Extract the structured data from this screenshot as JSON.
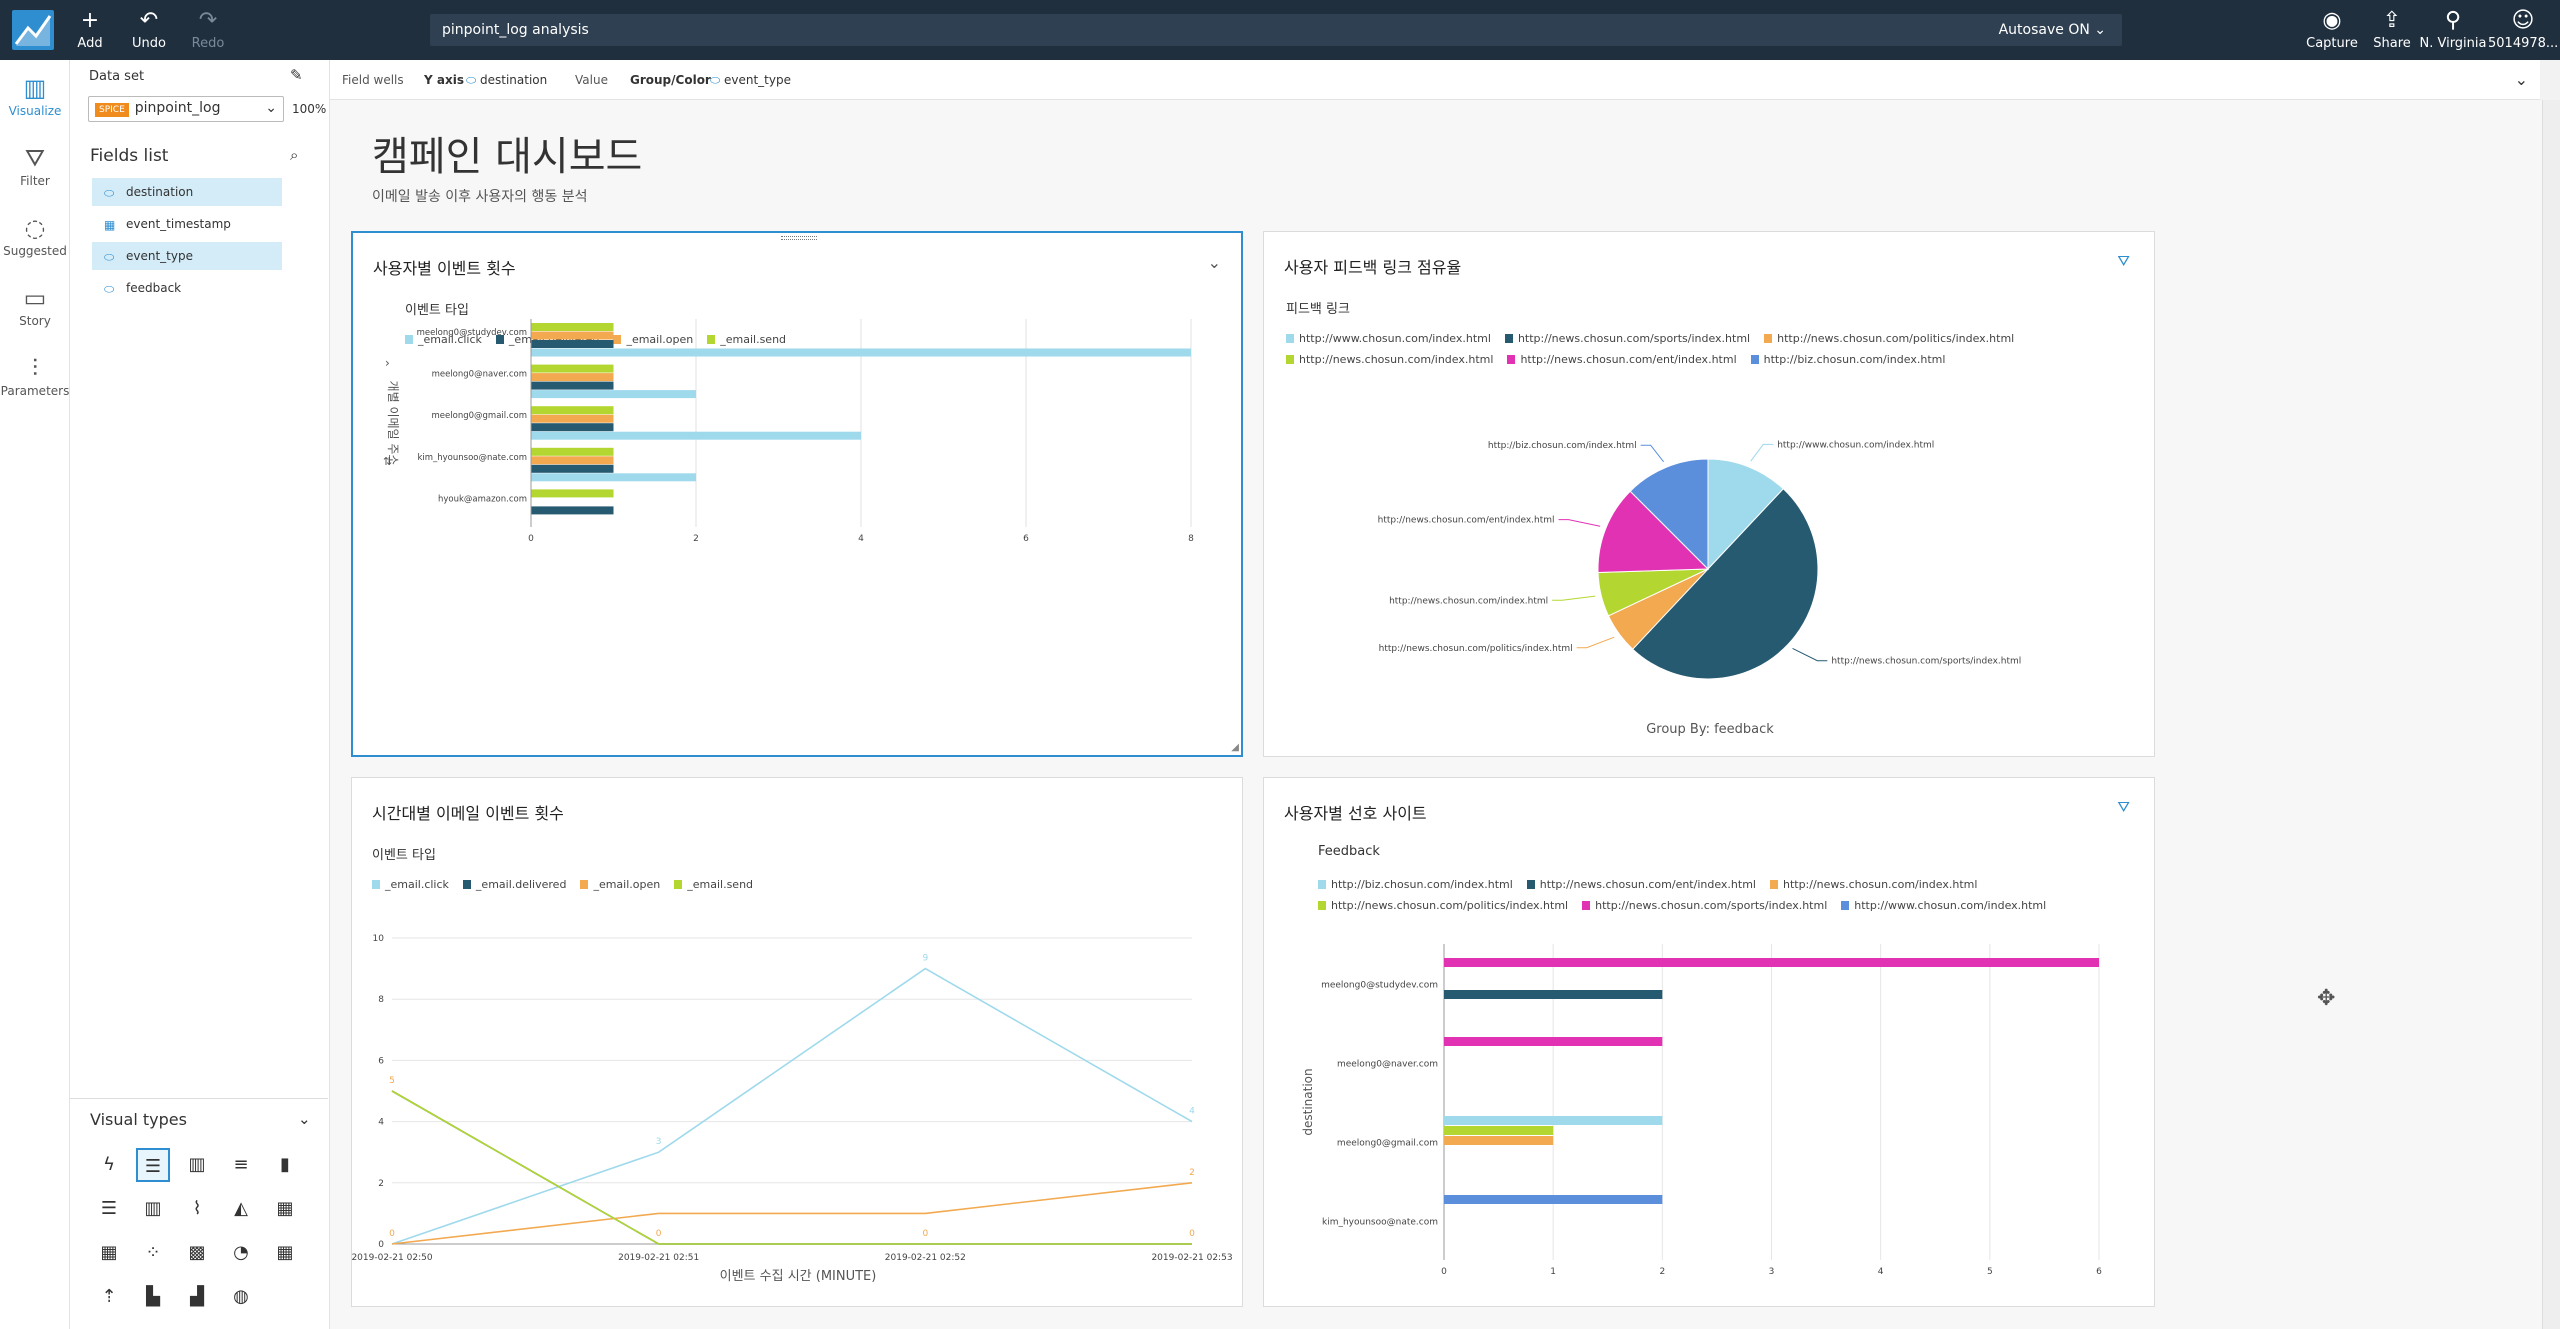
{
  "topbar": {
    "add_label": "Add",
    "undo_label": "Undo",
    "redo_label": "Redo",
    "analysis_title": "pinpoint_log analysis",
    "autosave": "Autosave ON",
    "capture_label": "Capture",
    "share_label": "Share",
    "region_label": "N. Virginia",
    "account_label": "5014978..."
  },
  "nav": {
    "visualize": "Visualize",
    "filter": "Filter",
    "suggested": "Suggested",
    "story": "Story",
    "parameters": "Parameters"
  },
  "sidepanel": {
    "dataset_label": "Data set",
    "spice_badge": "SPICE",
    "dataset_name": "pinpoint_log",
    "dataset_pct": "100%",
    "fields_title": "Fields list",
    "fields": [
      {
        "name": "destination",
        "selected": true,
        "icon": "string-field-icon"
      },
      {
        "name": "event_timestamp",
        "selected": false,
        "icon": "date-field-icon"
      },
      {
        "name": "event_type",
        "selected": true,
        "icon": "string-field-icon"
      },
      {
        "name": "feedback",
        "selected": false,
        "icon": "string-field-icon"
      }
    ],
    "visual_types_title": "Visual types"
  },
  "fieldwells": {
    "label": "Field wells",
    "yaxis_label": "Y axis",
    "yaxis_value": "destination",
    "value_label": "Value",
    "group_label": "Group/Color",
    "group_value": "event_type"
  },
  "sheet": {
    "title": "캠페인 대시보드",
    "subtitle": "이메일 발송 이후 사용자의 행동 분석"
  },
  "colors": {
    "click": "#9fd9ec",
    "delivered": "#265a71",
    "open": "#f2a950",
    "send": "#b3d730",
    "magenta": "#e232b4",
    "blue": "#5b8edb",
    "accent": "#2e8ecf",
    "topbar": "#1f2f3e"
  },
  "visuals": [
    {
      "title": "사용자별 이벤트 횟수",
      "legend_title": "이벤트 타입",
      "legend": [
        "_email.click",
        "_email.delivered",
        "_email.open",
        "_email.send"
      ],
      "y_axis_label": "개별 이메일 주소",
      "chart_data": {
        "type": "bar",
        "orientation": "horizontal",
        "categories": [
          "meelong0@studydev.com",
          "meelong0@naver.com",
          "meelong0@gmail.com",
          "kim_hyounsoo@nate.com",
          "hyouk@amazon.com"
        ],
        "series": [
          {
            "name": "_email.send",
            "values": [
              1,
              1,
              1,
              1,
              1
            ]
          },
          {
            "name": "_email.open",
            "values": [
              1,
              1,
              1,
              1,
              0
            ]
          },
          {
            "name": "_email.delivered",
            "values": [
              1,
              1,
              1,
              1,
              1
            ]
          },
          {
            "name": "_email.click",
            "values": [
              8,
              2,
              4,
              2,
              0
            ]
          }
        ],
        "x_ticks": [
          "0",
          "2",
          "4",
          "6",
          "8"
        ],
        "xlim": [
          0,
          8
        ]
      }
    },
    {
      "title": "사용자 피드백 링크 점유율",
      "legend_title": "피드백 링크",
      "legend": [
        "http://www.chosun.com/index.html",
        "http://news.chosun.com/sports/index.html",
        "http://news.chosun.com/politics/index.html",
        "http://news.chosun.com/index.html",
        "http://news.chosun.com/ent/index.html",
        "http://biz.chosun.com/index.html"
      ],
      "footer": "Group By: feedback",
      "chart_data": {
        "type": "pie",
        "labels": [
          "http://www.chosun.com/index.html",
          "http://news.chosun.com/sports/index.html",
          "http://news.chosun.com/politics/index.html",
          "http://news.chosun.com/index.html",
          "http://news.chosun.com/ent/index.html",
          "http://biz.chosun.com/index.html"
        ],
        "values": [
          12,
          50,
          6,
          6.5,
          13,
          12.5
        ]
      }
    },
    {
      "title": "시간대별 이메일 이벤트 횟수",
      "legend_title": "이벤트 타입",
      "legend": [
        "_email.click",
        "_email.delivered",
        "_email.open",
        "_email.send"
      ],
      "x_axis_label": "이벤트 수집 시간 (MINUTE)",
      "chart_data": {
        "type": "line",
        "x": [
          "2019-02-21 02:50",
          "2019-02-21 02:51",
          "2019-02-21 02:52",
          "2019-02-21 02:53"
        ],
        "series": [
          {
            "name": "_email.click",
            "values": [
              0,
              3,
              9,
              4
            ]
          },
          {
            "name": "_email.delivered",
            "values": [
              5,
              0,
              0,
              0
            ]
          },
          {
            "name": "_email.open",
            "values": [
              0,
              1,
              1,
              2
            ]
          },
          {
            "name": "_email.send",
            "values": [
              5,
              0,
              0,
              0
            ]
          }
        ],
        "data_labels": [
          "5",
          "3",
          "9",
          "4",
          "0",
          "0",
          "0",
          "2",
          "0"
        ],
        "y_ticks": [
          "0",
          "2",
          "4",
          "6",
          "8",
          "10"
        ],
        "ylim": [
          0,
          10
        ]
      }
    },
    {
      "title": "사용자별 선호 사이트",
      "legend_title": "Feedback",
      "legend": [
        "http://biz.chosun.com/index.html",
        "http://news.chosun.com/ent/index.html",
        "http://news.chosun.com/index.html",
        "http://news.chosun.com/politics/index.html",
        "http://news.chosun.com/sports/index.html",
        "http://www.chosun.com/index.html"
      ],
      "y_axis_label": "destination",
      "chart_data": {
        "type": "bar",
        "orientation": "horizontal",
        "categories": [
          "meelong0@studydev.com",
          "meelong0@naver.com",
          "meelong0@gmail.com",
          "kim_hyounsoo@nate.com"
        ],
        "series": [
          {
            "name": "http://news.chosun.com/sports/index.html",
            "values": [
              6,
              2,
              0,
              0
            ]
          },
          {
            "name": "http://news.chosun.com/ent/index.html",
            "values": [
              2,
              0,
              0,
              0
            ]
          },
          {
            "name": "http://biz.chosun.com/index.html",
            "values": [
              0,
              0,
              2,
              0
            ]
          },
          {
            "name": "http://news.chosun.com/politics/index.html",
            "values": [
              0,
              0,
              1,
              0
            ]
          },
          {
            "name": "http://news.chosun.com/index.html",
            "values": [
              0,
              0,
              1,
              0
            ]
          },
          {
            "name": "http://www.chosun.com/index.html",
            "values": [
              0,
              0,
              0,
              2
            ]
          }
        ],
        "x_ticks": [
          "0",
          "1",
          "2",
          "3",
          "4",
          "5",
          "6"
        ],
        "xlim": [
          0,
          6
        ]
      }
    }
  ]
}
